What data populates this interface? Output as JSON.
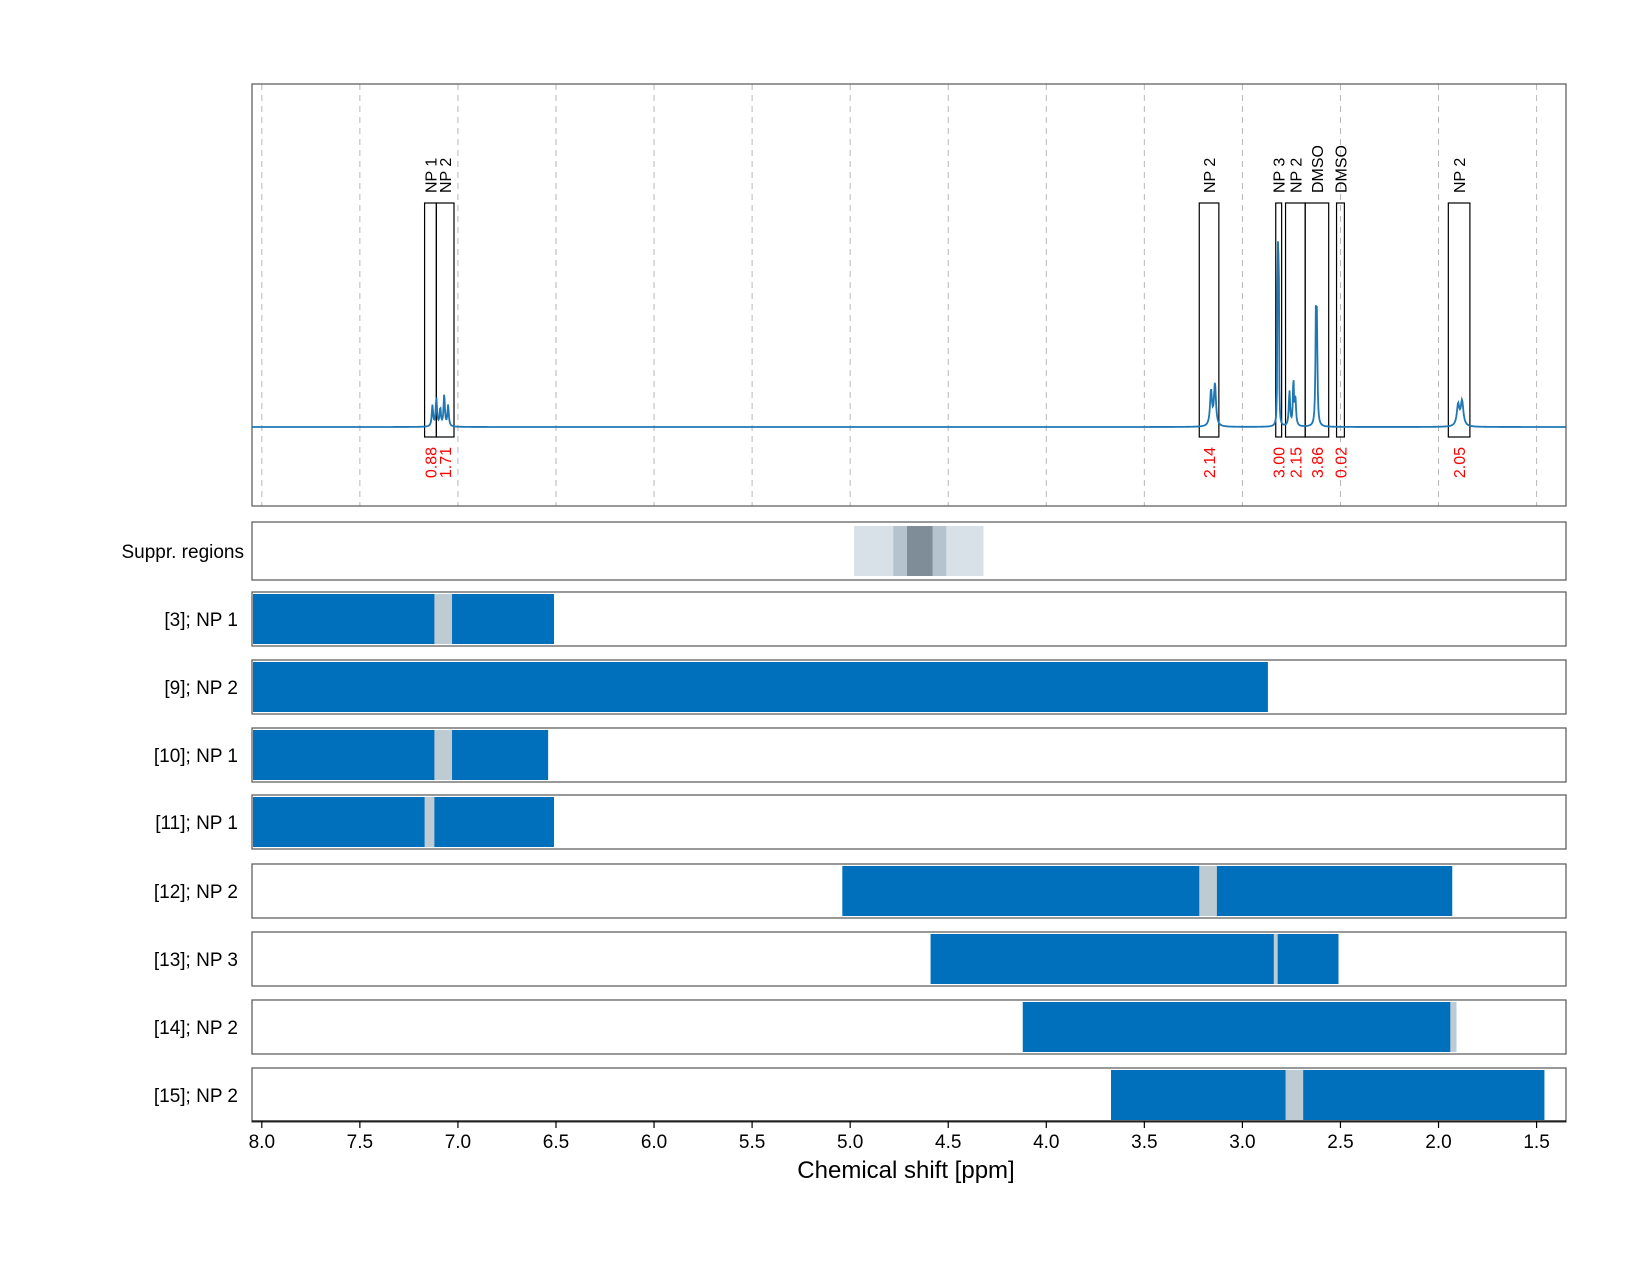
{
  "colors": {
    "spectrum": "#1f77b4",
    "bar": "#0070bd",
    "gap": "#bfcbd3",
    "integral": "#ff0000",
    "supp_light": "#d8e1e8",
    "supp_mid": "#b5c3ce",
    "supp_dark": "#7f8d98",
    "grid": "#b8b8b8",
    "frame": "#555555"
  },
  "chart_data": {
    "type": "nmr-spectrum-with-region-bars",
    "xlabel": "Chemical shift [ppm]",
    "xlim": [
      8.05,
      1.35
    ],
    "x_ticks": [
      "8.0",
      "7.5",
      "7.0",
      "6.5",
      "6.0",
      "5.5",
      "5.0",
      "4.5",
      "4.0",
      "3.5",
      "3.0",
      "2.5",
      "2.0",
      "1.5"
    ],
    "grid": "vertical dashed at 0.5 ppm",
    "spectrum": {
      "baseline": 0,
      "peaks": [
        {
          "ppm": 7.13,
          "height": 0.06,
          "width": 0.004
        },
        {
          "ppm": 7.11,
          "height": 0.08,
          "width": 0.004
        },
        {
          "ppm": 7.09,
          "height": 0.05,
          "width": 0.004
        },
        {
          "ppm": 7.07,
          "height": 0.09,
          "width": 0.004
        },
        {
          "ppm": 7.05,
          "height": 0.06,
          "width": 0.004
        },
        {
          "ppm": 3.16,
          "height": 0.1,
          "width": 0.006
        },
        {
          "ppm": 3.14,
          "height": 0.12,
          "width": 0.006
        },
        {
          "ppm": 2.82,
          "height": 0.7,
          "width": 0.0015
        },
        {
          "ppm": 2.815,
          "height": 0.68,
          "width": 0.0015
        },
        {
          "ppm": 2.76,
          "height": 0.1,
          "width": 0.004
        },
        {
          "ppm": 2.74,
          "height": 0.13,
          "width": 0.003
        },
        {
          "ppm": 2.73,
          "height": 0.08,
          "width": 0.004
        },
        {
          "ppm": 2.625,
          "height": 0.3,
          "width": 0.003
        },
        {
          "ppm": 2.62,
          "height": 0.26,
          "width": 0.003
        },
        {
          "ppm": 1.9,
          "height": 0.06,
          "width": 0.008
        },
        {
          "ppm": 1.88,
          "height": 0.07,
          "width": 0.008
        }
      ],
      "regions": [
        {
          "label": "NP 1",
          "from": 7.17,
          "to": 7.11,
          "integral": "0.88"
        },
        {
          "label": "NP 2",
          "from": 7.11,
          "to": 7.02,
          "integral": "1.71"
        },
        {
          "label": "NP 2",
          "from": 3.22,
          "to": 3.12,
          "integral": "2.14"
        },
        {
          "label": "NP 3",
          "from": 2.83,
          "to": 2.8,
          "integral": "3.00"
        },
        {
          "label": "NP 2",
          "from": 2.78,
          "to": 2.68,
          "integral": "2.15"
        },
        {
          "label": "DMSO",
          "from": 2.68,
          "to": 2.56,
          "integral": "3.86"
        },
        {
          "label": "DMSO",
          "from": 2.52,
          "to": 2.48,
          "integral": "0.02"
        },
        {
          "label": "NP 2",
          "from": 1.95,
          "to": 1.84,
          "integral": "2.05"
        }
      ]
    },
    "suppressed_regions": {
      "label": "Suppr. regions",
      "bands": [
        {
          "from": 4.98,
          "to": 4.32,
          "shade": "light"
        },
        {
          "from": 4.78,
          "to": 4.51,
          "shade": "mid"
        },
        {
          "from": 4.71,
          "to": 4.58,
          "shade": "dark"
        }
      ]
    },
    "rows": [
      {
        "label": "[3]; NP 1",
        "from": 8.05,
        "to": 6.51,
        "gaps": [
          [
            7.12,
            7.03
          ]
        ]
      },
      {
        "label": "[9]; NP 2",
        "from": 8.05,
        "to": 2.87,
        "gaps": []
      },
      {
        "label": "[10]; NP 1",
        "from": 8.05,
        "to": 6.54,
        "gaps": [
          [
            7.12,
            7.03
          ]
        ]
      },
      {
        "label": "[11]; NP 1",
        "from": 8.05,
        "to": 6.51,
        "gaps": [
          [
            7.17,
            7.12
          ]
        ]
      },
      {
        "label": "[12]; NP 2",
        "from": 5.04,
        "to": 1.93,
        "gaps": [
          [
            3.22,
            3.13
          ]
        ]
      },
      {
        "label": "[13]; NP 3",
        "from": 4.59,
        "to": 2.51,
        "gaps": [
          [
            2.84,
            2.82
          ]
        ]
      },
      {
        "label": "[14]; NP 2",
        "from": 4.12,
        "to": 1.91,
        "gaps": [
          [
            1.94,
            1.91
          ]
        ]
      },
      {
        "label": "[15]; NP 2",
        "from": 3.67,
        "to": 1.46,
        "gaps": [
          [
            2.78,
            2.69
          ]
        ]
      }
    ]
  }
}
